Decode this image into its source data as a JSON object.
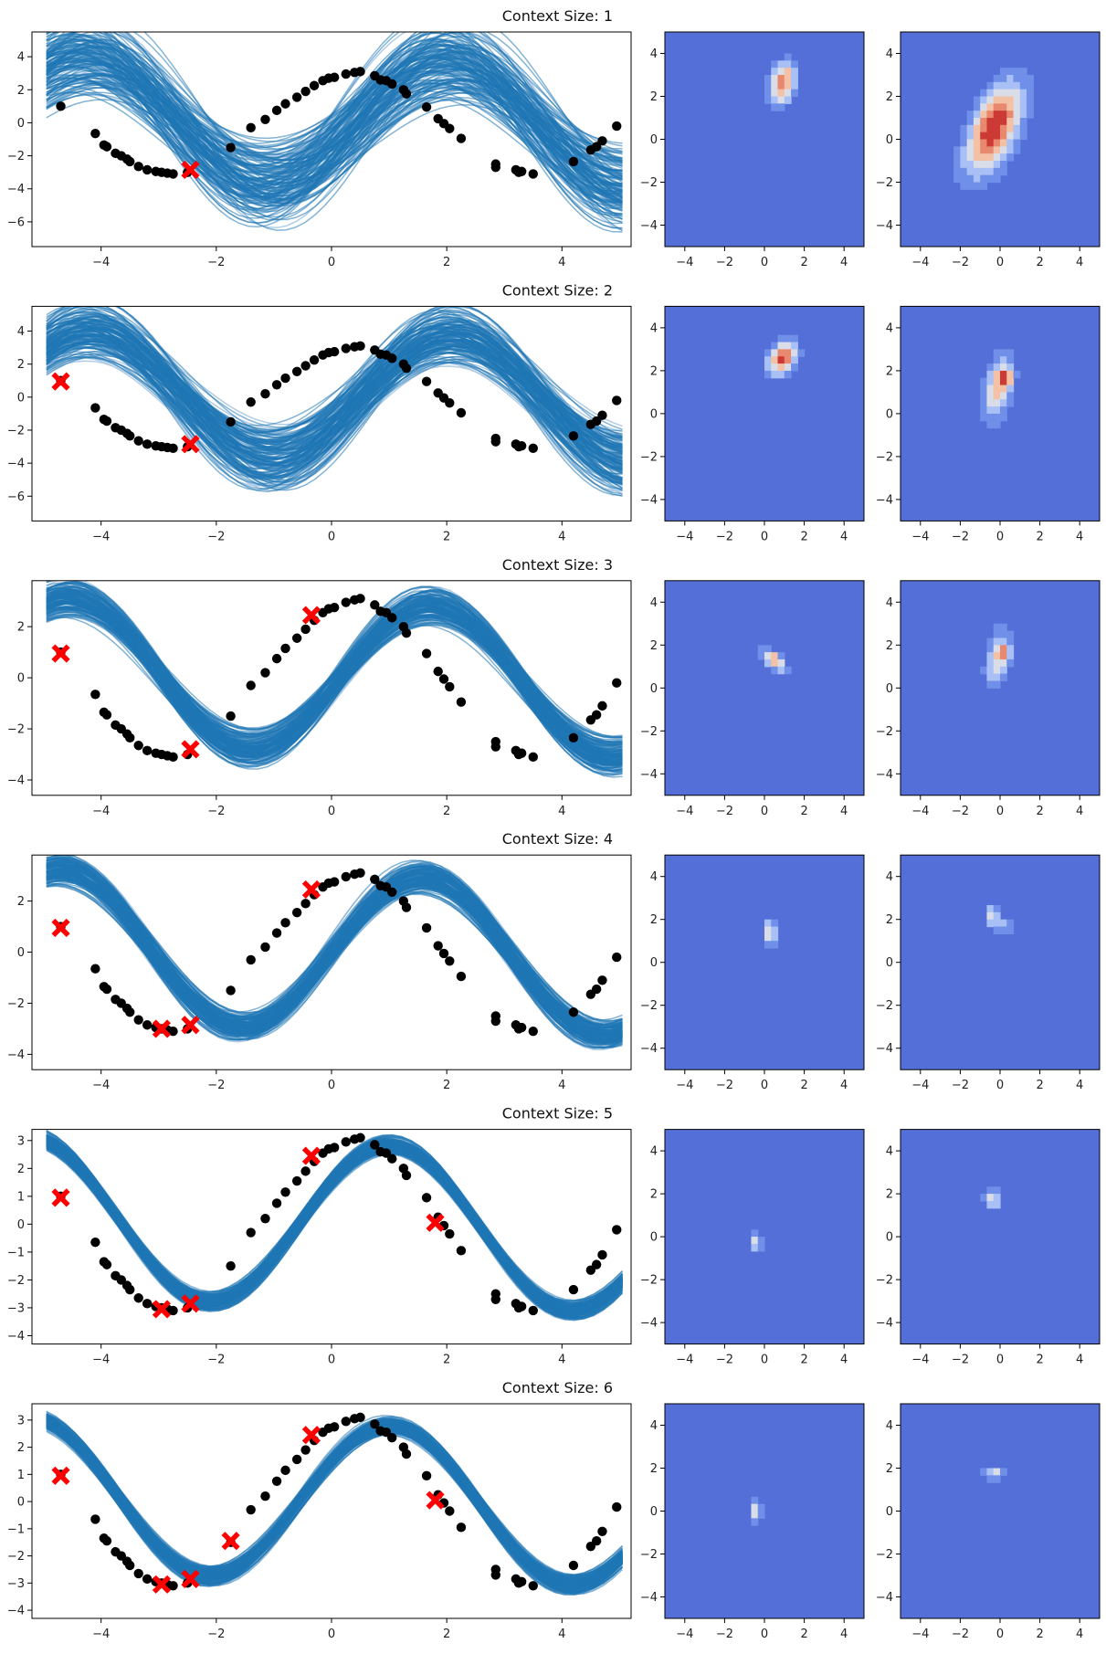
{
  "figure": {
    "rows": 6,
    "columns": [
      "function samples",
      "latent density 1",
      "latent density 2"
    ]
  },
  "colors": {
    "sample_line": "#1f77b4",
    "sample_line_faint": "#a9c8e3",
    "data_point": "#000000",
    "context_marker": "#ff0000",
    "contour_background": "#5470d8",
    "contour_levels": [
      "#5470d8",
      "#6f8fe8",
      "#a8c0f5",
      "#d9dde8",
      "#f3c1a6",
      "#e8886f",
      "#cc3a35"
    ]
  },
  "chart_data": [
    {
      "type": "line",
      "title": "Context Size: 1",
      "xlim": [
        -5.2,
        5.2
      ],
      "ylim": [
        -7.5,
        5.5
      ],
      "xticks": [
        -4,
        -2,
        0,
        2,
        4
      ],
      "yticks": [
        -6,
        -4,
        -2,
        0,
        2,
        4
      ],
      "context": [
        [
          -2.45,
          -2.85
        ]
      ],
      "band": {
        "amp": 3.8,
        "phase": -0.45,
        "amp_var": 1.5,
        "phase_var": 0.35,
        "offset_var": 1.4
      }
    },
    {
      "type": "heatmap",
      "xlim": [
        -5,
        5
      ],
      "ylim": [
        -5,
        5
      ],
      "xticks": [
        -4,
        -2,
        0,
        2,
        4
      ],
      "yticks": [
        -4,
        -2,
        0,
        2,
        4
      ],
      "blobs": [
        {
          "x": 0.9,
          "y": 2.6,
          "sx": 0.45,
          "sy": 0.7,
          "rho": 0.3,
          "peak": 0.85
        }
      ]
    },
    {
      "type": "heatmap",
      "xlim": [
        -5,
        5
      ],
      "ylim": [
        -5,
        5
      ],
      "xticks": [
        -4,
        -2,
        0,
        2,
        4
      ],
      "yticks": [
        -4,
        -2,
        0,
        2,
        4
      ],
      "blobs": [
        {
          "x": -0.3,
          "y": 0.5,
          "sx": 1.0,
          "sy": 1.5,
          "rho": 0.55,
          "peak": 1.0
        }
      ]
    },
    {
      "type": "line",
      "title": "Context Size: 2",
      "xlim": [
        -5.2,
        5.2
      ],
      "ylim": [
        -7.5,
        5.5
      ],
      "xticks": [
        -4,
        -2,
        0,
        2,
        4
      ],
      "yticks": [
        -6,
        -4,
        -2,
        0,
        2,
        4
      ],
      "context": [
        [
          -4.7,
          0.95
        ],
        [
          -2.45,
          -2.85
        ]
      ],
      "band": {
        "amp": 3.8,
        "phase": -0.5,
        "amp_var": 1.2,
        "phase_var": 0.25,
        "offset_var": 1.1
      }
    },
    {
      "type": "heatmap",
      "xlim": [
        -5,
        5
      ],
      "ylim": [
        -5,
        5
      ],
      "xticks": [
        -4,
        -2,
        0,
        2,
        4
      ],
      "yticks": [
        -4,
        -2,
        0,
        2,
        4
      ],
      "blobs": [
        {
          "x": 0.9,
          "y": 2.6,
          "sx": 0.5,
          "sy": 0.55,
          "rho": 0.3,
          "peak": 0.9
        }
      ]
    },
    {
      "type": "heatmap",
      "xlim": [
        -5,
        5
      ],
      "ylim": [
        -5,
        5
      ],
      "xticks": [
        -4,
        -2,
        0,
        2,
        4
      ],
      "yticks": [
        -4,
        -2,
        0,
        2,
        4
      ],
      "blobs": [
        {
          "x": -0.1,
          "y": 1.2,
          "sx": 0.5,
          "sy": 1.1,
          "rho": 0.4,
          "peak": 0.65
        },
        {
          "x": 0.3,
          "y": 1.7,
          "sx": 0.25,
          "sy": 0.25,
          "rho": 0.0,
          "peak": 0.55
        }
      ]
    },
    {
      "type": "line",
      "title": "Context Size: 3",
      "xlim": [
        -5.2,
        5.2
      ],
      "ylim": [
        -4.6,
        3.8
      ],
      "xticks": [
        -4,
        -2,
        0,
        2,
        4
      ],
      "yticks": [
        -4,
        -2,
        0,
        2
      ],
      "context": [
        [
          -4.7,
          0.95
        ],
        [
          -2.45,
          -2.8
        ],
        [
          -0.35,
          2.45
        ]
      ],
      "band": {
        "amp": 2.85,
        "phase": -0.15,
        "amp_var": 0.5,
        "phase_var": 0.12,
        "offset_var": 0.35
      }
    },
    {
      "type": "heatmap",
      "xlim": [
        -5,
        5
      ],
      "ylim": [
        -5,
        5
      ],
      "xticks": [
        -4,
        -2,
        0,
        2,
        4
      ],
      "yticks": [
        -4,
        -2,
        0,
        2,
        4
      ],
      "blobs": [
        {
          "x": 0.5,
          "y": 1.3,
          "sx": 0.4,
          "sy": 0.35,
          "rho": -0.6,
          "peak": 0.75
        }
      ]
    },
    {
      "type": "heatmap",
      "xlim": [
        -5,
        5
      ],
      "ylim": [
        -5,
        5
      ],
      "xticks": [
        -4,
        -2,
        0,
        2,
        4
      ],
      "yticks": [
        -4,
        -2,
        0,
        2,
        4
      ],
      "blobs": [
        {
          "x": -0.1,
          "y": 1.4,
          "sx": 0.45,
          "sy": 0.95,
          "rho": 0.3,
          "peak": 0.55
        },
        {
          "x": 0.25,
          "y": 1.7,
          "sx": 0.2,
          "sy": 0.2,
          "rho": 0.0,
          "peak": 0.5
        }
      ]
    },
    {
      "type": "line",
      "title": "Context Size: 4",
      "xlim": [
        -5.2,
        5.2
      ],
      "ylim": [
        -4.6,
        3.8
      ],
      "xticks": [
        -4,
        -2,
        0,
        2,
        4
      ],
      "yticks": [
        -4,
        -2,
        0,
        2
      ],
      "context": [
        [
          -4.7,
          0.95
        ],
        [
          -2.95,
          -3.0
        ],
        [
          -2.45,
          -2.85
        ],
        [
          -0.35,
          2.45
        ]
      ],
      "band": {
        "amp": 3.0,
        "phase": 0.0,
        "amp_var": 0.4,
        "phase_var": 0.12,
        "offset_var": 0.3
      }
    },
    {
      "type": "heatmap",
      "xlim": [
        -5,
        5
      ],
      "ylim": [
        -5,
        5
      ],
      "xticks": [
        -4,
        -2,
        0,
        2,
        4
      ],
      "yticks": [
        -4,
        -2,
        0,
        2,
        4
      ],
      "blobs": [
        {
          "x": 0.3,
          "y": 1.4,
          "sx": 0.22,
          "sy": 0.45,
          "rho": 0.0,
          "peak": 0.6
        }
      ]
    },
    {
      "type": "heatmap",
      "xlim": [
        -5,
        5
      ],
      "ylim": [
        -5,
        5
      ],
      "xticks": [
        -4,
        -2,
        0,
        2,
        4
      ],
      "yticks": [
        -4,
        -2,
        0,
        2,
        4
      ],
      "blobs": [
        {
          "x": -0.4,
          "y": 2.2,
          "sx": 0.2,
          "sy": 0.3,
          "rho": 0.0,
          "peak": 0.6
        },
        {
          "x": 0.2,
          "y": 1.7,
          "sx": 0.35,
          "sy": 0.25,
          "rho": 0.0,
          "peak": 0.35
        }
      ]
    },
    {
      "type": "line",
      "title": "Context Size: 5",
      "xlim": [
        -5.2,
        5.2
      ],
      "ylim": [
        -4.3,
        3.4
      ],
      "xticks": [
        -4,
        -2,
        0,
        2,
        4
      ],
      "yticks": [
        -4,
        -3,
        -2,
        -1,
        0,
        1,
        2,
        3
      ],
      "context": [
        [
          -4.7,
          0.95
        ],
        [
          -2.95,
          -3.05
        ],
        [
          -2.45,
          -2.85
        ],
        [
          -0.35,
          2.45
        ],
        [
          1.8,
          0.05
        ]
      ],
      "band": {
        "amp": 2.9,
        "phase": 0.55,
        "amp_var": 0.25,
        "phase_var": 0.08,
        "offset_var": 0.15
      }
    },
    {
      "type": "heatmap",
      "xlim": [
        -5,
        5
      ],
      "ylim": [
        -5,
        5
      ],
      "xticks": [
        -4,
        -2,
        0,
        2,
        4
      ],
      "yticks": [
        -4,
        -2,
        0,
        2,
        4
      ],
      "blobs": [
        {
          "x": -0.4,
          "y": -0.2,
          "sx": 0.18,
          "sy": 0.35,
          "rho": 0.0,
          "peak": 0.55
        }
      ]
    },
    {
      "type": "heatmap",
      "xlim": [
        -5,
        5
      ],
      "ylim": [
        -5,
        5
      ],
      "xticks": [
        -4,
        -2,
        0,
        2,
        4
      ],
      "yticks": [
        -4,
        -2,
        0,
        2,
        4
      ],
      "blobs": [
        {
          "x": -0.4,
          "y": 1.75,
          "sx": 0.3,
          "sy": 0.3,
          "rho": 0.0,
          "peak": 0.55
        }
      ]
    },
    {
      "type": "line",
      "title": "Context Size: 6",
      "xlim": [
        -5.2,
        5.2
      ],
      "ylim": [
        -4.3,
        3.6
      ],
      "xticks": [
        -4,
        -2,
        0,
        2,
        4
      ],
      "yticks": [
        -4,
        -3,
        -2,
        -1,
        0,
        1,
        2,
        3
      ],
      "context": [
        [
          -4.7,
          0.95
        ],
        [
          -2.95,
          -3.05
        ],
        [
          -2.45,
          -2.85
        ],
        [
          -1.75,
          -1.45
        ],
        [
          -0.35,
          2.45
        ],
        [
          1.8,
          0.05
        ]
      ],
      "band": {
        "amp": 2.85,
        "phase": 0.55,
        "amp_var": 0.25,
        "phase_var": 0.08,
        "offset_var": 0.15
      }
    },
    {
      "type": "heatmap",
      "xlim": [
        -5,
        5
      ],
      "ylim": [
        -5,
        5
      ],
      "xticks": [
        -4,
        -2,
        0,
        2,
        4
      ],
      "yticks": [
        -4,
        -2,
        0,
        2,
        4
      ],
      "blobs": [
        {
          "x": -0.4,
          "y": 0.0,
          "sx": 0.15,
          "sy": 0.45,
          "rho": 0.0,
          "peak": 0.65
        }
      ]
    },
    {
      "type": "heatmap",
      "xlim": [
        -5,
        5
      ],
      "ylim": [
        -5,
        5
      ],
      "xticks": [
        -4,
        -2,
        0,
        2,
        4
      ],
      "yticks": [
        -4,
        -2,
        0,
        2,
        4
      ],
      "blobs": [
        {
          "x": -0.3,
          "y": 1.75,
          "sx": 0.35,
          "sy": 0.2,
          "rho": 0.0,
          "peak": 0.55
        }
      ]
    }
  ],
  "observed_points": [
    [
      -4.7,
      1.0
    ],
    [
      -4.1,
      -0.65
    ],
    [
      -3.95,
      -1.35
    ],
    [
      -3.9,
      -1.45
    ],
    [
      -3.75,
      -1.85
    ],
    [
      -3.65,
      -2.0
    ],
    [
      -3.55,
      -2.2
    ],
    [
      -3.5,
      -2.35
    ],
    [
      -3.35,
      -2.65
    ],
    [
      -3.2,
      -2.85
    ],
    [
      -3.05,
      -2.95
    ],
    [
      -2.95,
      -3.0
    ],
    [
      -2.85,
      -3.05
    ],
    [
      -2.75,
      -3.1
    ],
    [
      -2.5,
      -3.0
    ],
    [
      -1.75,
      -1.5
    ],
    [
      -1.4,
      -0.3
    ],
    [
      -1.15,
      0.2
    ],
    [
      -0.95,
      0.75
    ],
    [
      -0.8,
      1.15
    ],
    [
      -0.6,
      1.55
    ],
    [
      -0.45,
      1.9
    ],
    [
      -0.3,
      2.25
    ],
    [
      -0.15,
      2.55
    ],
    [
      -0.05,
      2.7
    ],
    [
      0.05,
      2.75
    ],
    [
      0.25,
      2.95
    ],
    [
      0.4,
      3.05
    ],
    [
      0.5,
      3.1
    ],
    [
      0.75,
      2.85
    ],
    [
      0.85,
      2.6
    ],
    [
      0.95,
      2.55
    ],
    [
      1.05,
      2.35
    ],
    [
      1.25,
      2.0
    ],
    [
      1.3,
      1.75
    ],
    [
      1.65,
      0.95
    ],
    [
      1.85,
      0.25
    ],
    [
      1.95,
      -0.05
    ],
    [
      2.05,
      -0.35
    ],
    [
      2.25,
      -0.95
    ],
    [
      2.85,
      -2.5
    ],
    [
      2.85,
      -2.7
    ],
    [
      3.2,
      -2.85
    ],
    [
      3.25,
      -3.0
    ],
    [
      3.3,
      -2.95
    ],
    [
      3.5,
      -3.1
    ],
    [
      4.2,
      -2.35
    ],
    [
      4.5,
      -1.65
    ],
    [
      4.6,
      -1.45
    ],
    [
      4.7,
      -1.1
    ],
    [
      4.95,
      -0.2
    ]
  ]
}
